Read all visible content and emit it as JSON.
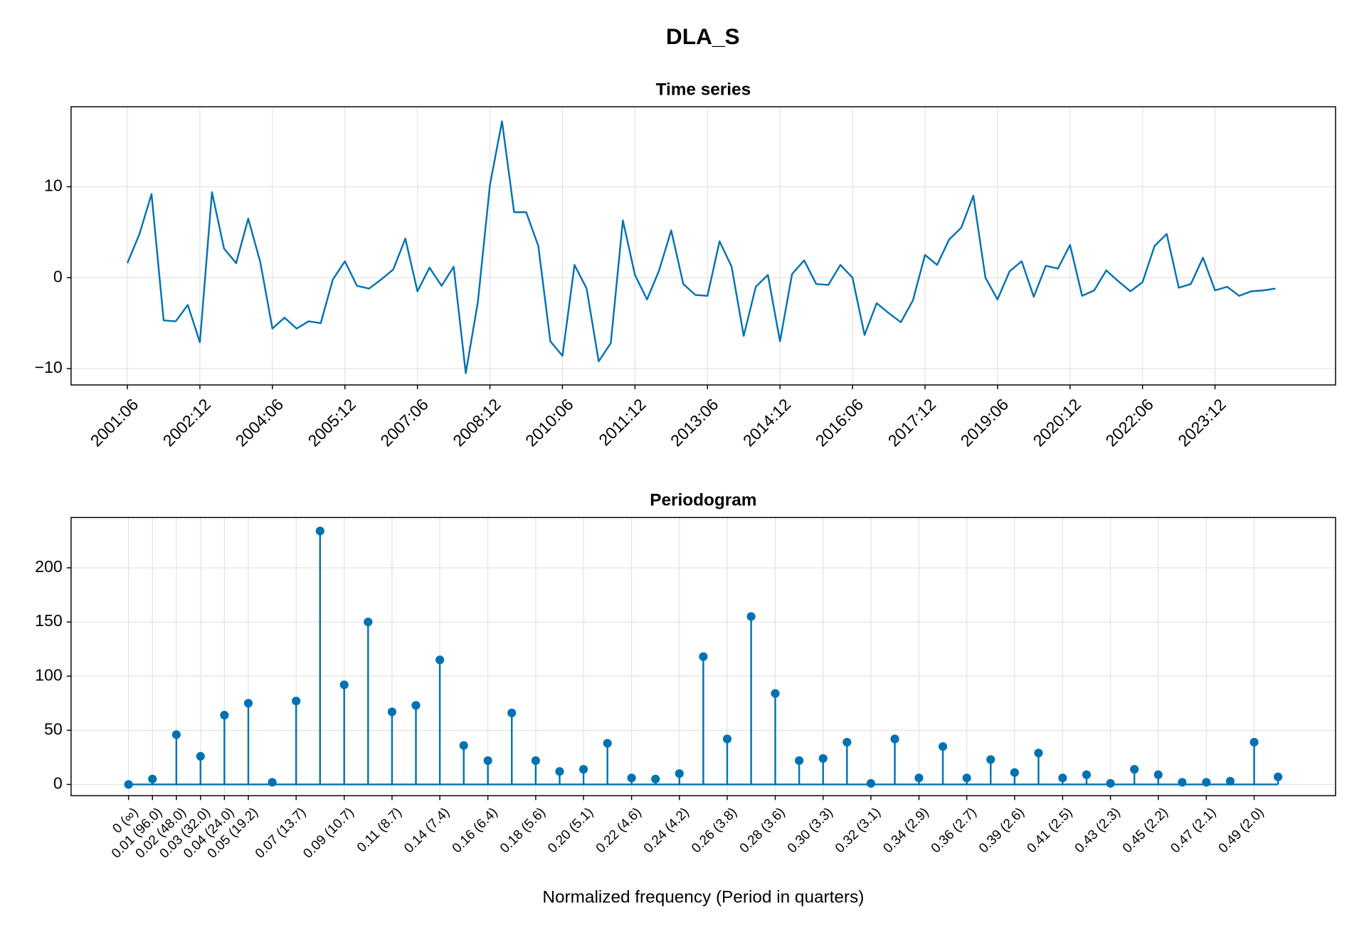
{
  "title": "DLA_S",
  "chart_data": [
    {
      "type": "line",
      "title": "Time series",
      "color": "#0072b2",
      "grid": true,
      "categories": [
        "2001:06",
        null,
        null,
        null,
        null,
        null,
        "2002:12",
        null,
        null,
        null,
        null,
        null,
        "2004:06",
        null,
        null,
        null,
        null,
        null,
        "2005:12",
        null,
        null,
        null,
        null,
        null,
        "2007:06",
        null,
        null,
        null,
        null,
        null,
        "2008:12",
        null,
        null,
        null,
        null,
        null,
        "2010:06",
        null,
        null,
        null,
        null,
        null,
        "2011:12",
        null,
        null,
        null,
        null,
        null,
        "2013:06",
        null,
        null,
        null,
        null,
        null,
        "2014:12",
        null,
        null,
        null,
        null,
        null,
        "2016:06",
        null,
        null,
        null,
        null,
        null,
        "2017:12",
        null,
        null,
        null,
        null,
        null,
        "2019:06",
        null,
        null,
        null,
        null,
        null,
        "2020:12",
        null,
        null,
        null,
        null,
        null,
        "2022:06",
        null,
        null,
        null,
        null,
        null,
        "2023:12",
        null,
        null,
        null,
        null,
        null
      ],
      "series": [
        {
          "color": "#0072b2",
          "values": [
            1.6,
            4.8,
            9.2,
            -4.7,
            -4.8,
            -3.0,
            -7.1,
            9.4,
            3.2,
            1.6,
            6.5,
            1.7,
            -5.6,
            -4.4,
            -5.6,
            -4.8,
            -5.0,
            -0.2,
            1.8,
            -0.9,
            -1.2,
            -0.2,
            0.9,
            4.3,
            -1.5,
            1.1,
            -0.9,
            1.2,
            -10.5,
            -2.7,
            10.2,
            17.2,
            7.2,
            7.2,
            3.5,
            -7.0,
            -8.6,
            1.4,
            -1.2,
            -9.2,
            -7.2,
            6.3,
            0.3,
            -2.4,
            0.8,
            5.2,
            -0.7,
            -1.9,
            -2.0,
            4.0,
            1.2,
            -6.4,
            -1.0,
            0.3,
            -7.0,
            0.4,
            1.9,
            -0.7,
            -0.8,
            1.4,
            0.0,
            -6.3,
            -2.8,
            -3.9,
            -4.9,
            -2.5,
            2.5,
            1.4,
            4.2,
            5.5,
            9.0,
            0.0,
            -2.4,
            0.7,
            1.8,
            -2.1,
            1.3,
            1.0,
            3.6,
            -2.0,
            -1.4,
            0.8,
            -0.4,
            -1.5,
            -0.5,
            3.5,
            4.8,
            -1.1,
            -0.7,
            2.2,
            -1.4,
            -1.0,
            -2.0,
            -1.5,
            -1.4,
            -1.2
          ]
        }
      ],
      "ylim": [
        -11.8,
        18.8
      ],
      "yticks": [
        {
          "value": -10,
          "label": "−10"
        },
        0,
        10
      ]
    },
    {
      "type": "stem",
      "title": "Periodogram",
      "xlabel": "Normalized frequency (Period in quarters)",
      "color": "#0072b2",
      "grid": true,
      "x": [
        0,
        0.0104,
        0.0208,
        0.0313,
        0.0417,
        0.0521,
        0.0625,
        0.0729,
        0.0833,
        0.0938,
        0.1042,
        0.1146,
        0.125,
        0.1354,
        0.1458,
        0.1563,
        0.1667,
        0.1771,
        0.1875,
        0.1979,
        0.2083,
        0.2188,
        0.2292,
        0.2396,
        0.25,
        0.2604,
        0.2708,
        0.2813,
        0.2917,
        0.3021,
        0.3125,
        0.3229,
        0.3333,
        0.3438,
        0.3542,
        0.3646,
        0.375,
        0.3854,
        0.3958,
        0.4063,
        0.4167,
        0.4271,
        0.4375,
        0.4479,
        0.4583,
        0.4688,
        0.4792,
        0.4896,
        0.5
      ],
      "values": [
        0,
        5,
        46,
        26,
        64,
        75,
        2,
        77,
        234,
        92,
        150,
        67,
        73,
        115,
        36,
        22,
        66,
        22,
        12,
        14,
        38,
        6,
        5,
        10,
        118,
        42,
        155,
        84,
        22,
        24,
        39,
        1,
        42,
        6,
        35,
        6,
        23,
        11,
        29,
        6,
        9,
        1,
        14,
        9,
        2,
        2,
        3,
        39,
        7
      ],
      "xlim": [
        -0.025,
        0.525
      ],
      "xticks": [
        {
          "value": 0,
          "label": "0 (∞)"
        },
        {
          "value": 0.0104,
          "label": "0.01 (96.0)"
        },
        {
          "value": 0.0208,
          "label": "0.02 (48.0)"
        },
        {
          "value": 0.0313,
          "label": "0.03 (32.0)"
        },
        {
          "value": 0.0417,
          "label": "0.04 (24.0)"
        },
        {
          "value": 0.0521,
          "label": "0.05 (19.2)"
        },
        {
          "value": 0.0729,
          "label": "0.07 (13.7)"
        },
        {
          "value": 0.0938,
          "label": "0.09 (10.7)"
        },
        {
          "value": 0.1146,
          "label": "0.11 (8.7)"
        },
        {
          "value": 0.1354,
          "label": "0.14 (7.4)"
        },
        {
          "value": 0.1563,
          "label": "0.16 (6.4)"
        },
        {
          "value": 0.1771,
          "label": "0.18 (5.6)"
        },
        {
          "value": 0.1979,
          "label": "0.20 (5.1)"
        },
        {
          "value": 0.2188,
          "label": "0.22 (4.6)"
        },
        {
          "value": 0.2396,
          "label": "0.24 (4.2)"
        },
        {
          "value": 0.2604,
          "label": "0.26 (3.8)"
        },
        {
          "value": 0.2813,
          "label": "0.28 (3.6)"
        },
        {
          "value": 0.3021,
          "label": "0.30 (3.3)"
        },
        {
          "value": 0.3229,
          "label": "0.32 (3.1)"
        },
        {
          "value": 0.3438,
          "label": "0.34 (2.9)"
        },
        {
          "value": 0.3646,
          "label": "0.36 (2.7)"
        },
        {
          "value": 0.3854,
          "label": "0.39 (2.6)"
        },
        {
          "value": 0.4063,
          "label": "0.41 (2.5)"
        },
        {
          "value": 0.4271,
          "label": "0.43 (2.3)"
        },
        {
          "value": 0.4479,
          "label": "0.45 (2.2)"
        },
        {
          "value": 0.4688,
          "label": "0.47 (2.1)"
        },
        {
          "value": 0.4896,
          "label": "0.49 (2.0)"
        }
      ],
      "ylim": [
        -10.4,
        246.4
      ],
      "yticks": [
        0,
        50,
        100,
        150,
        200
      ]
    }
  ]
}
